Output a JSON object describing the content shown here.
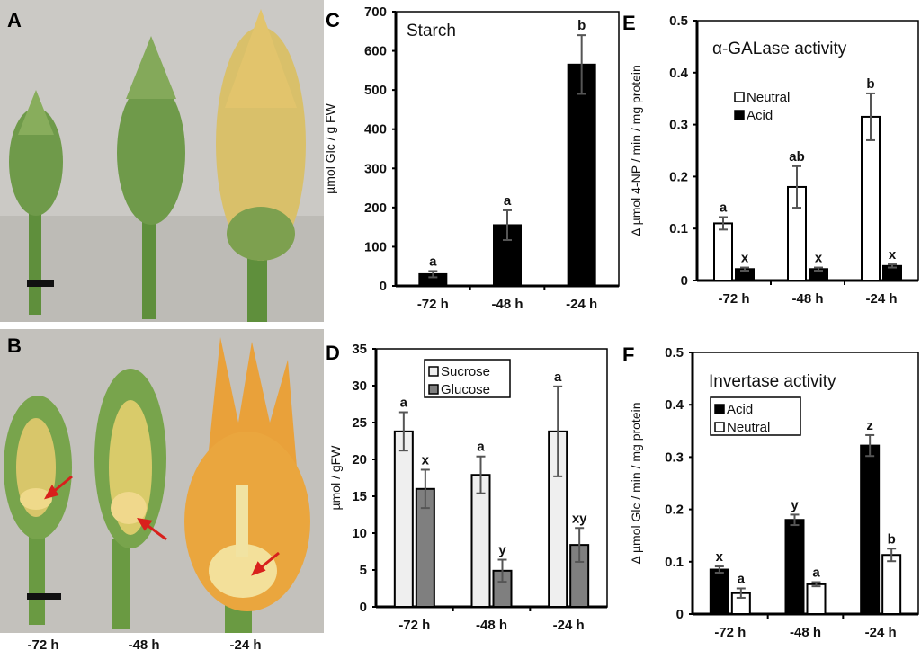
{
  "panels": {
    "A": "A",
    "B": "B",
    "C": "C",
    "D": "D",
    "E": "E",
    "F": "F"
  },
  "photos": {
    "time_labels": [
      "-72 h",
      "-48 h",
      "-24 h"
    ],
    "colors": {
      "background": "#c9c7c3",
      "bud_green": "#6f9a4a",
      "petal_orange": "#e9a13a",
      "arrow_red": "#d8201c"
    }
  },
  "chart_data": [
    {
      "panel": "C",
      "type": "bar",
      "title": "Starch",
      "ylabel": "µmol Glc / g FW",
      "categories": [
        "-72 h",
        "-48 h",
        "-24 h"
      ],
      "ylim": [
        0,
        700
      ],
      "yticks": [
        "0",
        "100",
        "200",
        "300",
        "400",
        "500",
        "600",
        "700"
      ],
      "series": [
        {
          "values": [
            30,
            155,
            565
          ],
          "errors": [
            8,
            38,
            75
          ],
          "letters": [
            "a",
            "a",
            "b"
          ],
          "color": "#000000"
        }
      ]
    },
    {
      "panel": "D",
      "type": "bar",
      "title": "",
      "ylabel": "µmol / gFW",
      "categories": [
        "-72 h",
        "-48 h",
        "-24 h"
      ],
      "ylim": [
        0,
        35
      ],
      "yticks": [
        "0",
        "5",
        "10",
        "15",
        "20",
        "25",
        "30",
        "35"
      ],
      "legend": "top-center",
      "series": [
        {
          "name": "Sucrose",
          "values": [
            23.8,
            17.9,
            23.8
          ],
          "errors": [
            2.6,
            2.5,
            6.1
          ],
          "letters": [
            "a",
            "a",
            "a"
          ],
          "color": "#efefef"
        },
        {
          "name": "Glucose",
          "values": [
            16.0,
            4.9,
            8.4
          ],
          "errors": [
            2.6,
            1.5,
            2.3
          ],
          "letters": [
            "x",
            "y",
            "xy"
          ],
          "color": "#7f7f7f"
        }
      ]
    },
    {
      "panel": "E",
      "type": "bar",
      "title": "α-GALase activity",
      "ylabel": "Δ µmol 4-NP / min / mg protein",
      "categories": [
        "-72 h",
        "-48 h",
        "-24 h"
      ],
      "ylim": [
        0,
        0.5
      ],
      "yticks": [
        "0",
        "0.1",
        "0.2",
        "0.3",
        "0.4",
        "0.5"
      ],
      "legend": "top-left",
      "series": [
        {
          "name": "Neutral",
          "values": [
            0.11,
            0.18,
            0.315
          ],
          "errors": [
            0.012,
            0.04,
            0.045
          ],
          "letters": [
            "a",
            "ab",
            "b"
          ],
          "color": "#ffffff"
        },
        {
          "name": "Acid",
          "values": [
            0.022,
            0.022,
            0.028
          ],
          "errors": [
            0.003,
            0.003,
            0.003
          ],
          "letters": [
            "x",
            "x",
            "x"
          ],
          "color": "#000000"
        }
      ]
    },
    {
      "panel": "F",
      "type": "bar",
      "title": "Invertase activity",
      "ylabel": "Δ µmol Glc / min / mg protein",
      "categories": [
        "-72 h",
        "-48 h",
        "-24 h"
      ],
      "ylim": [
        0,
        0.5
      ],
      "yticks": [
        "0",
        "0.1",
        "0.2",
        "0.3",
        "0.4",
        "0.5"
      ],
      "legend": "top-left",
      "series": [
        {
          "name": "Acid",
          "values": [
            0.085,
            0.18,
            0.322
          ],
          "errors": [
            0.006,
            0.01,
            0.02
          ],
          "letters": [
            "x",
            "y",
            "z"
          ],
          "color": "#000000"
        },
        {
          "name": "Neutral",
          "values": [
            0.04,
            0.057,
            0.113
          ],
          "errors": [
            0.009,
            0.004,
            0.012
          ],
          "letters": [
            "a",
            "a",
            "b"
          ],
          "color": "#ffffff"
        }
      ]
    }
  ]
}
